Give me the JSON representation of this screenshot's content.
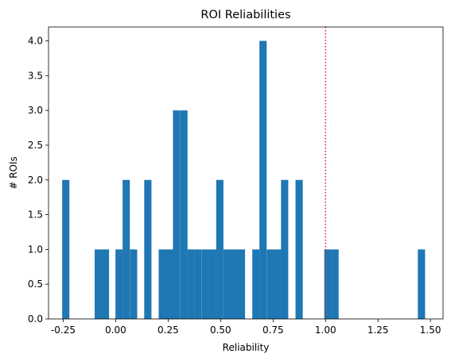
{
  "chart_data": {
    "type": "bar",
    "title": "ROI Reliabilities",
    "xlabel": "Reliability",
    "ylabel": "# ROIs",
    "xlim": [
      -0.32,
      1.56
    ],
    "ylim": [
      0.0,
      4.2
    ],
    "bar_width": 0.0345,
    "bar_color": "#1f77b4",
    "bins": [
      {
        "left": -0.255,
        "count": 2
      },
      {
        "left": -0.1,
        "count": 1
      },
      {
        "left": -0.066,
        "count": 1
      },
      {
        "left": -0.001,
        "count": 1
      },
      {
        "left": 0.033,
        "count": 2
      },
      {
        "left": 0.068,
        "count": 1
      },
      {
        "left": 0.136,
        "count": 2
      },
      {
        "left": 0.205,
        "count": 1
      },
      {
        "left": 0.239,
        "count": 1
      },
      {
        "left": 0.273,
        "count": 3
      },
      {
        "left": 0.308,
        "count": 3
      },
      {
        "left": 0.342,
        "count": 1
      },
      {
        "left": 0.376,
        "count": 1
      },
      {
        "left": 0.411,
        "count": 1
      },
      {
        "left": 0.445,
        "count": 1
      },
      {
        "left": 0.479,
        "count": 2
      },
      {
        "left": 0.514,
        "count": 1
      },
      {
        "left": 0.548,
        "count": 1
      },
      {
        "left": 0.582,
        "count": 1
      },
      {
        "left": 0.651,
        "count": 1
      },
      {
        "left": 0.685,
        "count": 4
      },
      {
        "left": 0.72,
        "count": 1
      },
      {
        "left": 0.754,
        "count": 1
      },
      {
        "left": 0.788,
        "count": 2
      },
      {
        "left": 0.857,
        "count": 2
      },
      {
        "left": 0.994,
        "count": 1
      },
      {
        "left": 1.028,
        "count": 1
      },
      {
        "left": 1.44,
        "count": 1
      }
    ],
    "reference_line": {
      "x": 1.0,
      "color": "#d62728",
      "style": "dotted"
    },
    "xticks": [
      "-0.25",
      "0.00",
      "0.25",
      "0.50",
      "0.75",
      "1.00",
      "1.25",
      "1.50"
    ],
    "xtick_values": [
      -0.25,
      0.0,
      0.25,
      0.5,
      0.75,
      1.0,
      1.25,
      1.5
    ],
    "yticks": [
      "0.0",
      "0.5",
      "1.0",
      "1.5",
      "2.0",
      "2.5",
      "3.0",
      "3.5",
      "4.0"
    ],
    "ytick_values": [
      0.0,
      0.5,
      1.0,
      1.5,
      2.0,
      2.5,
      3.0,
      3.5,
      4.0
    ],
    "grid": false,
    "legend": "none"
  }
}
